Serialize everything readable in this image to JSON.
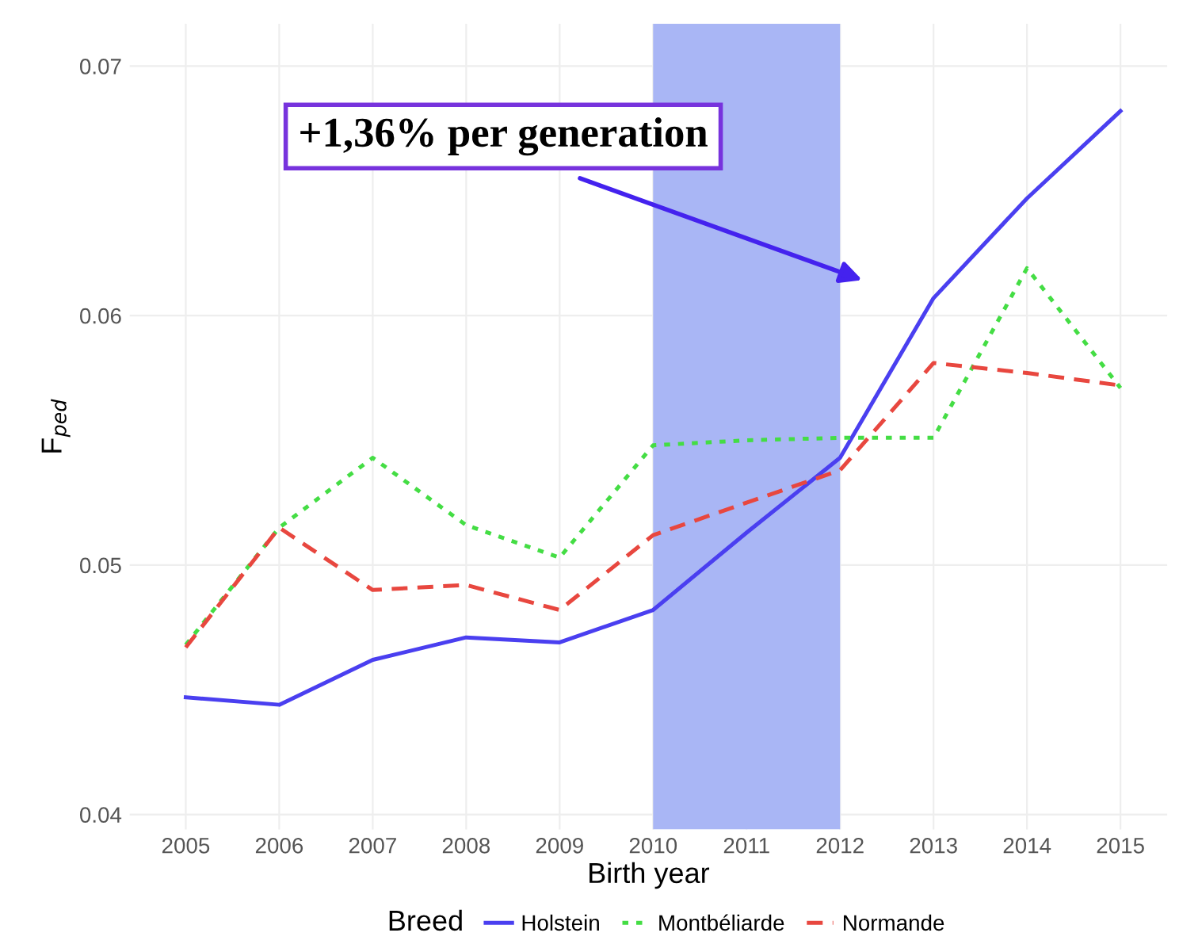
{
  "chart_data": {
    "type": "line",
    "xlabel": "Birth year",
    "ylabel": "F$_{ped}$",
    "legend_title": "Breed",
    "legend": "bottom",
    "grid": true,
    "x": [
      2005,
      2006,
      2007,
      2008,
      2009,
      2010,
      2011,
      2012,
      2013,
      2014,
      2015
    ],
    "xlim": [
      2004.4,
      2015.5
    ],
    "xticks": [
      2005,
      2006,
      2007,
      2008,
      2009,
      2010,
      2011,
      2012,
      2013,
      2014,
      2015
    ],
    "ylim": [
      0.0394,
      0.0717
    ],
    "yticks": [
      0.04,
      0.05,
      0.06,
      0.07
    ],
    "series": [
      {
        "name": "Holstein",
        "color": "#4a3ff0",
        "line_style": "solid",
        "values": [
          0.0447,
          0.0444,
          0.0462,
          0.0471,
          0.0469,
          0.0482,
          0.0513,
          0.0543,
          0.0607,
          0.0647,
          0.0682
        ]
      },
      {
        "name": "Montbéliarde",
        "color": "#44dd44",
        "line_style": "dotted",
        "values": [
          0.0468,
          0.0515,
          0.0543,
          0.0516,
          0.0503,
          0.0548,
          0.055,
          0.0551,
          0.0551,
          0.0619,
          0.0571
        ]
      },
      {
        "name": "Normande",
        "color": "#e8473f",
        "line_style": "dashed",
        "values": [
          0.0467,
          0.0515,
          0.049,
          0.0492,
          0.0482,
          0.0512,
          0.0525,
          0.0538,
          0.0581,
          0.0577,
          0.0572
        ]
      }
    ],
    "bands": [
      {
        "axis": "x",
        "from": 2010,
        "to": 2012,
        "color": "#a9b6f5"
      }
    ],
    "annotations": [
      "+1,36% per generation"
    ]
  }
}
